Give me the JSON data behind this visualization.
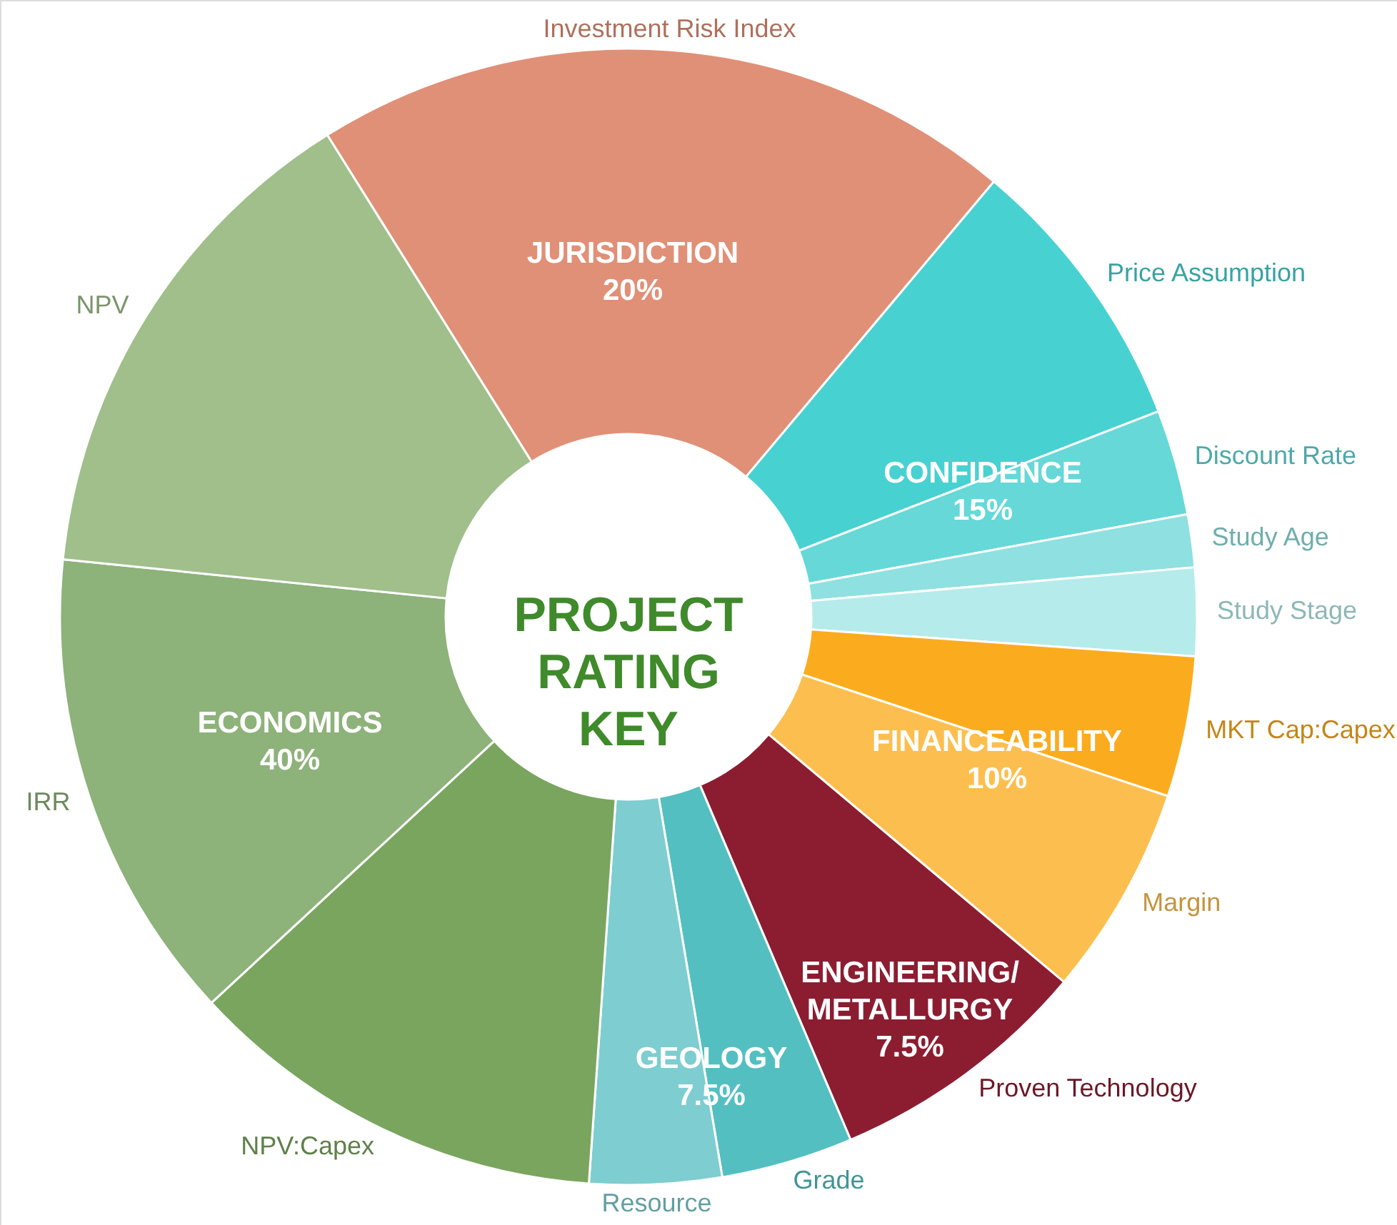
{
  "chart_data": {
    "type": "donut",
    "title": "PROJECT RATING KEY",
    "categories": [
      "Investment Risk Index",
      "Price Assumption",
      "Discount Rate",
      "Study Age",
      "Study Stage",
      "MKT Cap:Capex",
      "Margin",
      "Proven Technology",
      "Grade",
      "Resource",
      "NPV:Capex",
      "IRR",
      "NPV"
    ],
    "values": [
      20,
      8,
      3,
      1.5,
      2.5,
      4,
      6,
      7.5,
      3.75,
      3.75,
      12,
      13.5,
      14.5
    ],
    "colors": [
      "#e09077",
      "#48d1d1",
      "#66d8d8",
      "#8fe0e0",
      "#b5ebeb",
      "#fbac1e",
      "#fcbf4f",
      "#8c1d31",
      "#54bfc1",
      "#7ecdd0",
      "#7aa55f",
      "#8db27a",
      "#a0bf8b"
    ],
    "annotations": [
      "JURISDICTION\n20%",
      "CONFIDENCE\n15%",
      "FINANCEABILITY\n10%",
      "ENGINEERING/\nMETALLURGY\n7.5%",
      "GEOLOGY\n7.5%",
      "ECONOMICS\n40%"
    ]
  }
}
